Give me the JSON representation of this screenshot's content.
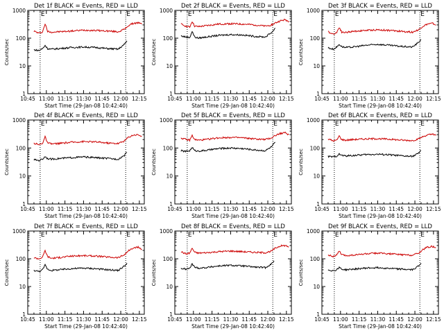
{
  "chart_data": [
    {
      "type": "line",
      "title": "Det 1f BLACK = Events, RED = LLD",
      "xlabel": "Start Time (29-Jan-08 10:42:40)",
      "ylabel": "Counts/sec",
      "xlim": [
        "10:45",
        "12:19"
      ],
      "ylim": [
        1,
        1000
      ],
      "yscale": "log",
      "grid": false,
      "xticks": [
        "10:45",
        "11:00",
        "11:15",
        "11:30",
        "11:45",
        "12:00",
        "12:15"
      ],
      "yticks": [
        "1",
        "10",
        "100",
        "1000"
      ],
      "markers": [
        {
          "x": "10:55",
          "label": "E"
        },
        {
          "x": "12:04",
          "label": "E"
        }
      ],
      "series": [
        {
          "name": "LLD",
          "color": "#cc0000",
          "x": [
            "10:50",
            "10:54",
            "10:57",
            "10:59",
            "11:01",
            "11:04",
            "11:10",
            "11:20",
            "11:30",
            "11:40",
            "11:50",
            "11:58",
            "12:03",
            "12:06",
            "12:10",
            "12:14",
            "12:17"
          ],
          "y": [
            180,
            150,
            170,
            330,
            175,
            165,
            170,
            180,
            195,
            190,
            180,
            170,
            210,
            280,
            340,
            360,
            320
          ]
        },
        {
          "name": "Events",
          "color": "#000000",
          "x": [
            "10:50",
            "10:54",
            "10:57",
            "10:59",
            "11:01",
            "11:04",
            "11:10",
            "11:20",
            "11:30",
            "11:40",
            "11:50",
            "11:58",
            "12:03",
            "12:05"
          ],
          "y": [
            38,
            36,
            42,
            55,
            42,
            40,
            42,
            46,
            48,
            46,
            42,
            40,
            60,
            80
          ]
        }
      ]
    },
    {
      "type": "line",
      "title": "Det 2f BLACK = Events, RED = LLD",
      "xlabel": "Start Time (29-Jan-08 10:42:40)",
      "ylabel": "Counts/sec",
      "xlim": [
        "10:45",
        "12:19"
      ],
      "ylim": [
        1,
        1000
      ],
      "yscale": "log",
      "grid": false,
      "xticks": [
        "10:45",
        "11:00",
        "11:15",
        "11:30",
        "11:45",
        "12:00",
        "12:15"
      ],
      "yticks": [
        "1",
        "10",
        "100",
        "1000"
      ],
      "markers": [
        {
          "x": "10:55",
          "label": "E"
        },
        {
          "x": "12:04",
          "label": "E"
        }
      ],
      "series": [
        {
          "name": "LLD",
          "color": "#cc0000",
          "x": [
            "10:50",
            "10:54",
            "10:57",
            "10:59",
            "11:01",
            "11:04",
            "11:10",
            "11:20",
            "11:30",
            "11:40",
            "11:50",
            "11:58",
            "12:03",
            "12:06",
            "12:10",
            "12:14",
            "12:17"
          ],
          "y": [
            320,
            270,
            250,
            400,
            270,
            260,
            280,
            320,
            330,
            320,
            300,
            270,
            300,
            350,
            420,
            460,
            400
          ]
        },
        {
          "name": "Events",
          "color": "#000000",
          "x": [
            "10:50",
            "10:54",
            "10:57",
            "10:59",
            "11:01",
            "11:04",
            "11:10",
            "11:20",
            "11:30",
            "11:40",
            "11:50",
            "11:58",
            "12:03",
            "12:05",
            "12:06"
          ],
          "y": [
            120,
            110,
            105,
            175,
            110,
            100,
            110,
            125,
            135,
            130,
            115,
            110,
            160,
            200,
            230
          ]
        }
      ]
    },
    {
      "type": "line",
      "title": "Det 3f BLACK = Events, RED = LLD",
      "xlabel": "Start Time (29-Jan-08 10:42:40)",
      "ylabel": "Counts/sec",
      "xlim": [
        "10:45",
        "12:19"
      ],
      "ylim": [
        1,
        1000
      ],
      "yscale": "log",
      "grid": false,
      "xticks": [
        "10:45",
        "11:00",
        "11:15",
        "11:30",
        "11:45",
        "12:00",
        "12:15"
      ],
      "yticks": [
        "1",
        "10",
        "100",
        "1000"
      ],
      "markers": [
        {
          "x": "10:55",
          "label": "E"
        },
        {
          "x": "12:04",
          "label": "E"
        }
      ],
      "series": [
        {
          "name": "LLD",
          "color": "#cc0000",
          "x": [
            "10:50",
            "10:54",
            "10:57",
            "10:59",
            "11:01",
            "11:04",
            "11:10",
            "11:20",
            "11:30",
            "11:40",
            "11:50",
            "11:58",
            "12:03",
            "12:06",
            "12:10",
            "12:14",
            "12:17"
          ],
          "y": [
            170,
            140,
            160,
            250,
            165,
            160,
            175,
            190,
            200,
            190,
            175,
            165,
            200,
            260,
            320,
            340,
            300
          ]
        },
        {
          "name": "Events",
          "color": "#000000",
          "x": [
            "10:50",
            "10:54",
            "10:57",
            "10:59",
            "11:01",
            "11:04",
            "11:10",
            "11:20",
            "11:30",
            "11:40",
            "11:50",
            "11:58",
            "12:03",
            "12:05"
          ],
          "y": [
            45,
            40,
            48,
            60,
            50,
            46,
            48,
            55,
            60,
            55,
            50,
            48,
            70,
            90
          ]
        }
      ]
    },
    {
      "type": "line",
      "title": "Det 4f BLACK = Events, RED = LLD",
      "xlabel": "Start Time (29-Jan-08 10:42:40)",
      "ylabel": "Counts/sec",
      "xlim": [
        "10:45",
        "12:19"
      ],
      "ylim": [
        1,
        1000
      ],
      "yscale": "log",
      "grid": false,
      "xticks": [
        "10:45",
        "11:00",
        "11:15",
        "11:30",
        "11:45",
        "12:00",
        "12:15"
      ],
      "yticks": [
        "1",
        "10",
        "100",
        "1000"
      ],
      "markers": [
        {
          "x": "10:55",
          "label": "E"
        },
        {
          "x": "12:04",
          "label": "E"
        }
      ],
      "series": [
        {
          "name": "LLD",
          "color": "#cc0000",
          "x": [
            "10:50",
            "10:54",
            "10:57",
            "10:59",
            "11:01",
            "11:04",
            "11:10",
            "11:20",
            "11:30",
            "11:40",
            "11:50",
            "11:58",
            "12:03",
            "12:06",
            "12:10",
            "12:14",
            "12:17"
          ],
          "y": [
            150,
            130,
            150,
            250,
            150,
            140,
            145,
            160,
            170,
            165,
            150,
            145,
            180,
            240,
            290,
            300,
            260
          ]
        },
        {
          "name": "Events",
          "color": "#000000",
          "x": [
            "10:50",
            "10:54",
            "10:57",
            "10:59",
            "11:01",
            "11:04",
            "11:10",
            "11:20",
            "11:30",
            "11:40",
            "11:50",
            "11:58",
            "12:03",
            "12:05"
          ],
          "y": [
            38,
            36,
            40,
            50,
            42,
            40,
            42,
            45,
            48,
            45,
            42,
            40,
            55,
            70
          ]
        }
      ]
    },
    {
      "type": "line",
      "title": "Det 5f BLACK = Events, RED = LLD",
      "xlabel": "Start Time (29-Jan-08 10:42:40)",
      "ylabel": "Counts/sec",
      "xlim": [
        "10:45",
        "12:19"
      ],
      "ylim": [
        1,
        1000
      ],
      "yscale": "log",
      "grid": false,
      "xticks": [
        "10:45",
        "11:00",
        "11:15",
        "11:30",
        "11:45",
        "12:00",
        "12:15"
      ],
      "yticks": [
        "1",
        "10",
        "100",
        "1000"
      ],
      "markers": [
        {
          "x": "10:55",
          "label": "E"
        },
        {
          "x": "12:04",
          "label": "E"
        }
      ],
      "series": [
        {
          "name": "LLD",
          "color": "#cc0000",
          "x": [
            "10:50",
            "10:54",
            "10:57",
            "10:59",
            "11:01",
            "11:04",
            "11:10",
            "11:20",
            "11:30",
            "11:40",
            "11:50",
            "11:58",
            "12:03",
            "12:06",
            "12:10",
            "12:14",
            "12:17"
          ],
          "y": [
            230,
            200,
            190,
            280,
            200,
            190,
            200,
            230,
            240,
            230,
            210,
            200,
            230,
            280,
            330,
            350,
            300
          ]
        },
        {
          "name": "Events",
          "color": "#000000",
          "x": [
            "10:50",
            "10:54",
            "10:57",
            "10:59",
            "11:01",
            "11:04",
            "11:10",
            "11:20",
            "11:30",
            "11:40",
            "11:50",
            "11:58",
            "12:03",
            "12:05",
            "12:06"
          ],
          "y": [
            80,
            75,
            80,
            105,
            80,
            78,
            82,
            95,
            100,
            95,
            85,
            80,
            110,
            140,
            160
          ]
        }
      ]
    },
    {
      "type": "line",
      "title": "Det 6f BLACK = Events, RED = LLD",
      "xlabel": "Start Time (29-Jan-08 10:42:40)",
      "ylabel": "Counts/sec",
      "xlim": [
        "10:45",
        "12:19"
      ],
      "ylim": [
        1,
        1000
      ],
      "yscale": "log",
      "grid": false,
      "xticks": [
        "10:45",
        "11:00",
        "11:15",
        "11:30",
        "11:45",
        "12:00",
        "12:15"
      ],
      "yticks": [
        "1",
        "10",
        "100",
        "1000"
      ],
      "markers": [
        {
          "x": "10:55",
          "label": "E"
        },
        {
          "x": "12:04",
          "label": "E"
        }
      ],
      "series": [
        {
          "name": "LLD",
          "color": "#cc0000",
          "x": [
            "10:50",
            "10:54",
            "10:57",
            "10:59",
            "11:01",
            "11:04",
            "11:10",
            "11:20",
            "11:30",
            "11:40",
            "11:50",
            "11:58",
            "12:03",
            "12:06",
            "12:10",
            "12:14",
            "12:17"
          ],
          "y": [
            210,
            180,
            190,
            270,
            200,
            190,
            200,
            210,
            215,
            205,
            190,
            185,
            210,
            250,
            290,
            310,
            280
          ]
        },
        {
          "name": "Events",
          "color": "#000000",
          "x": [
            "10:50",
            "10:54",
            "10:57",
            "10:59",
            "11:01",
            "11:04",
            "11:10",
            "11:20",
            "11:30",
            "11:40",
            "11:50",
            "11:58",
            "12:03",
            "12:05"
          ],
          "y": [
            50,
            48,
            52,
            60,
            55,
            52,
            54,
            58,
            60,
            57,
            52,
            50,
            65,
            80
          ]
        }
      ]
    },
    {
      "type": "line",
      "title": "Det 7f BLACK = Events, RED = LLD",
      "xlabel": "Start Time (29-Jan-08 10:42:40)",
      "ylabel": "Counts/sec",
      "xlim": [
        "10:45",
        "12:19"
      ],
      "ylim": [
        1,
        1000
      ],
      "yscale": "log",
      "grid": false,
      "xticks": [
        "10:45",
        "11:00",
        "11:15",
        "11:30",
        "11:45",
        "12:00",
        "12:15"
      ],
      "yticks": [
        "1",
        "10",
        "100",
        "1000"
      ],
      "markers": [
        {
          "x": "10:55",
          "label": "E"
        },
        {
          "x": "12:04",
          "label": "E"
        }
      ],
      "series": [
        {
          "name": "LLD",
          "color": "#cc0000",
          "x": [
            "10:50",
            "10:54",
            "10:57",
            "10:59",
            "11:01",
            "11:04",
            "11:10",
            "11:20",
            "11:30",
            "11:40",
            "11:50",
            "11:58",
            "12:03",
            "12:06",
            "12:10",
            "12:14",
            "12:17"
          ],
          "y": [
            110,
            100,
            115,
            200,
            120,
            105,
            110,
            125,
            130,
            125,
            115,
            110,
            140,
            190,
            240,
            260,
            220
          ]
        },
        {
          "name": "Events",
          "color": "#000000",
          "x": [
            "10:50",
            "10:54",
            "10:57",
            "10:59",
            "11:01",
            "11:04",
            "11:10",
            "11:20",
            "11:30",
            "11:40",
            "11:50",
            "11:58",
            "12:03",
            "12:05"
          ],
          "y": [
            38,
            35,
            40,
            60,
            42,
            38,
            40,
            44,
            46,
            44,
            40,
            38,
            55,
            70
          ]
        }
      ]
    },
    {
      "type": "line",
      "title": "Det 8f BLACK = Events, RED = LLD",
      "xlabel": "Start Time (29-Jan-08 10:42:40)",
      "ylabel": "Counts/sec",
      "xlim": [
        "10:45",
        "12:19"
      ],
      "ylim": [
        1,
        1000
      ],
      "yscale": "log",
      "grid": false,
      "xticks": [
        "10:45",
        "11:00",
        "11:15",
        "11:30",
        "11:45",
        "12:00",
        "12:15"
      ],
      "yticks": [
        "1",
        "10",
        "100",
        "1000"
      ],
      "markers": [
        {
          "x": "10:55",
          "label": "E"
        },
        {
          "x": "12:04",
          "label": "E"
        }
      ],
      "series": [
        {
          "name": "LLD",
          "color": "#cc0000",
          "x": [
            "10:50",
            "10:54",
            "10:57",
            "10:59",
            "11:01",
            "11:04",
            "11:10",
            "11:20",
            "11:30",
            "11:40",
            "11:50",
            "11:58",
            "12:03",
            "12:06",
            "12:10",
            "12:14",
            "12:17"
          ],
          "y": [
            180,
            150,
            160,
            240,
            170,
            160,
            165,
            180,
            190,
            180,
            170,
            165,
            190,
            240,
            290,
            300,
            270
          ]
        },
        {
          "name": "Events",
          "color": "#000000",
          "x": [
            "10:50",
            "10:54",
            "10:57",
            "10:59",
            "11:01",
            "11:04",
            "11:10",
            "11:20",
            "11:30",
            "11:40",
            "11:50",
            "11:58",
            "12:03",
            "12:05"
          ],
          "y": [
            45,
            42,
            45,
            65,
            50,
            46,
            48,
            55,
            58,
            55,
            50,
            48,
            65,
            85
          ]
        }
      ]
    },
    {
      "type": "line",
      "title": "Det 9f BLACK = Events, RED = LLD",
      "xlabel": "Start Time (29-Jan-08 10:42:40)",
      "ylabel": "Counts/sec",
      "xlim": [
        "10:45",
        "12:19"
      ],
      "ylim": [
        1,
        1000
      ],
      "yscale": "log",
      "grid": false,
      "xticks": [
        "10:45",
        "11:00",
        "11:15",
        "11:30",
        "11:45",
        "12:00",
        "12:15"
      ],
      "yticks": [
        "1",
        "10",
        "100",
        "1000"
      ],
      "markers": [
        {
          "x": "10:55",
          "label": "E"
        },
        {
          "x": "12:04",
          "label": "E"
        }
      ],
      "series": [
        {
          "name": "LLD",
          "color": "#cc0000",
          "x": [
            "10:50",
            "10:54",
            "10:57",
            "10:59",
            "11:01",
            "11:04",
            "11:10",
            "11:20",
            "11:30",
            "11:40",
            "11:50",
            "11:58",
            "12:03",
            "12:06",
            "12:10",
            "12:14",
            "12:17"
          ],
          "y": [
            140,
            120,
            135,
            190,
            140,
            130,
            135,
            150,
            160,
            150,
            140,
            135,
            160,
            210,
            260,
            280,
            250
          ]
        },
        {
          "name": "Events",
          "color": "#000000",
          "x": [
            "10:50",
            "10:54",
            "10:57",
            "10:59",
            "11:01",
            "11:04",
            "11:10",
            "11:20",
            "11:30",
            "11:40",
            "11:50",
            "11:58",
            "12:03",
            "12:05"
          ],
          "y": [
            40,
            37,
            40,
            50,
            42,
            40,
            42,
            46,
            48,
            45,
            42,
            40,
            55,
            70
          ]
        }
      ]
    }
  ]
}
